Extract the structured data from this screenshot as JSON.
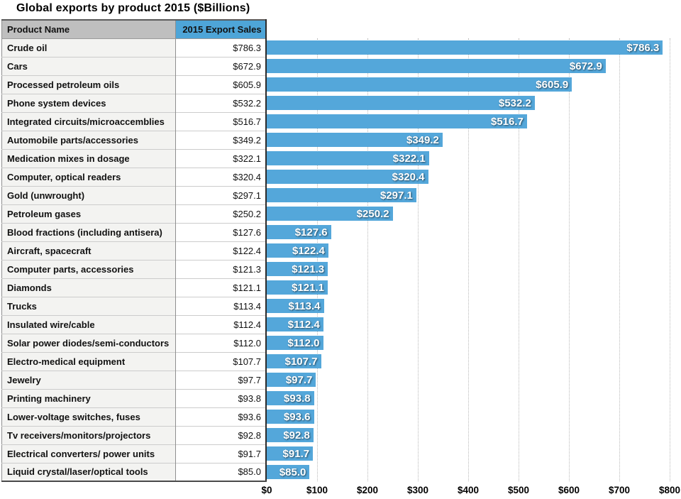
{
  "title": "Global exports by product 2015 ($Billions)",
  "table": {
    "columns": [
      "Product Name",
      "2015 Export Sales"
    ]
  },
  "chart_data": {
    "type": "bar",
    "orientation": "horizontal",
    "title": "Global exports by product 2015 ($Billions)",
    "xlabel": "",
    "ylabel": "Product Name",
    "xlim": [
      0,
      800
    ],
    "x_tick_labels": [
      "$0",
      "$100",
      "$200",
      "$300",
      "$400",
      "$500",
      "$600",
      "$700",
      "$800"
    ],
    "grid": "vertical dotted gridlines at every $100",
    "legend_position": "none",
    "categories": [
      "Crude oil",
      "Cars",
      "Processed petroleum oils",
      "Phone system devices",
      "Integrated circuits/microaccemblies",
      "Automobile parts/accessories",
      "Medication mixes in dosage",
      "Computer, optical readers",
      "Gold (unwrought)",
      "Petroleum gases",
      "Blood fractions (including antisera)",
      "Aircraft, spacecraft",
      "Computer parts, accessories",
      "Diamonds",
      "Trucks",
      "Insulated wire/cable",
      "Solar power diodes/semi-conductors",
      "Electro-medical equipment",
      "Jewelry",
      "Printing machinery",
      "Lower-voltage switches, fuses",
      "Tv receivers/monitors/projectors",
      "Electrical converters/ power units",
      "Liquid crystal/laser/optical tools"
    ],
    "values": [
      786.3,
      672.9,
      605.9,
      532.2,
      516.7,
      349.2,
      322.1,
      320.4,
      297.1,
      250.2,
      127.6,
      122.4,
      121.3,
      121.1,
      113.4,
      112.4,
      112.0,
      107.7,
      97.7,
      93.8,
      93.6,
      92.8,
      91.7,
      85.0
    ],
    "value_labels": [
      "$786.3",
      "$672.9",
      "$605.9",
      "$532.2",
      "$516.7",
      "$349.2",
      "$322.1",
      "$320.4",
      "$297.1",
      "$250.2",
      "$127.6",
      "$122.4",
      "$121.3",
      "$121.1",
      "$113.4",
      "$112.4",
      "$112.0",
      "$107.7",
      "$97.7",
      "$93.8",
      "$93.6",
      "$92.8",
      "$91.7",
      "$85.0"
    ]
  },
  "colors": {
    "bar_blue": "#54A7DA",
    "header_blue": "#4EA5D8",
    "header_gray": "#BFBFBF",
    "name_cell_bg": "#F3F3F1",
    "gridline": "#B9B9B9"
  }
}
